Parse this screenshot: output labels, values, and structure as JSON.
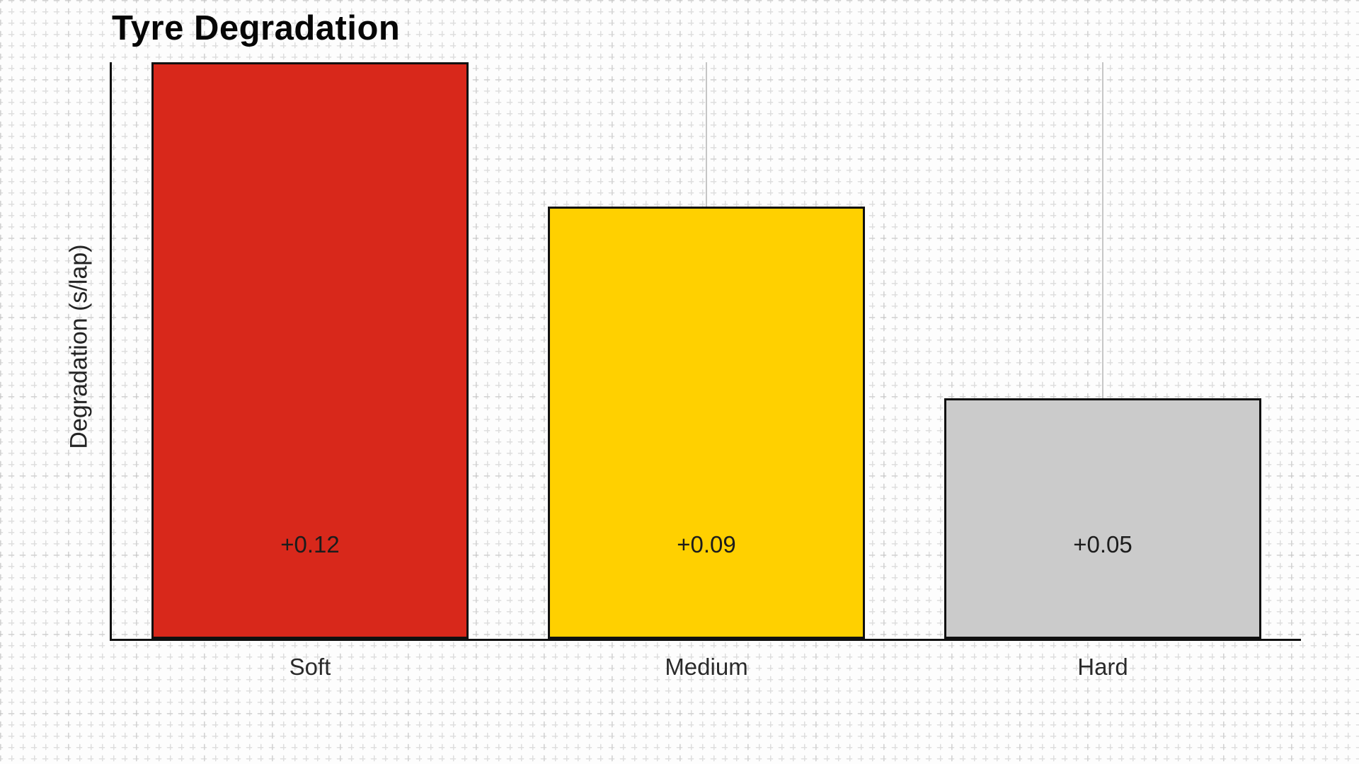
{
  "chart_data": {
    "type": "bar",
    "title": "Tyre Degradation",
    "categories": [
      "Soft",
      "Medium",
      "Hard"
    ],
    "values": [
      0.12,
      0.09,
      0.05
    ],
    "data_labels": [
      "+0.12",
      "+0.09",
      "+0.05"
    ],
    "colors": [
      "#d8281b",
      "#ffd000",
      "#cbcbcb"
    ],
    "bar_border_color": "#101010",
    "xlabel": "",
    "ylabel": "Degradation (s/lap)",
    "ylim": [
      0,
      0.12
    ],
    "bar_width_fraction": 0.8,
    "axis_color": "#101010",
    "category_gridline_color": "#c6c6c6",
    "background_color": "#fdfdfd",
    "value_label_color": "#1c1c1c",
    "tick_label_color": "#2a2a2a",
    "title_color": "#060606",
    "grid": "vertical-lines-at-category-centers",
    "legend": false
  }
}
